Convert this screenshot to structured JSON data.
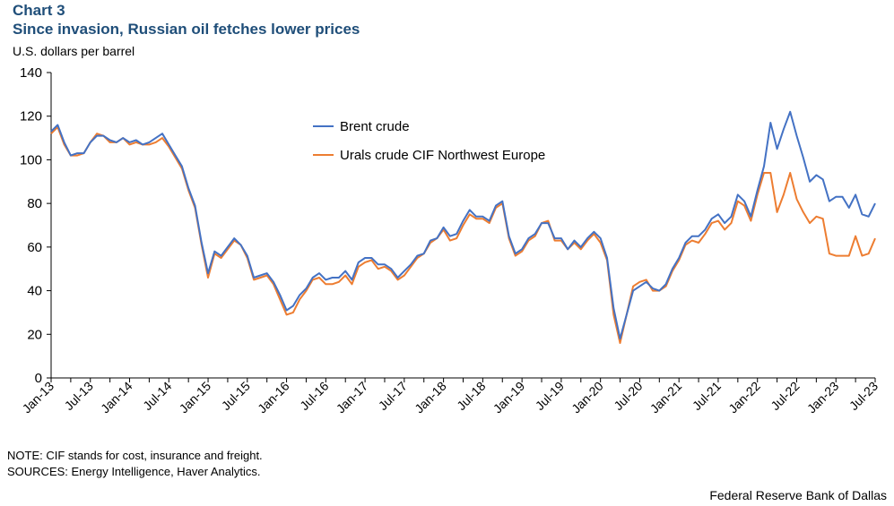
{
  "header": {
    "label": "Chart 3",
    "title": "Since invasion, Russian oil fetches lower prices",
    "unit": "U.S. dollars per barrel"
  },
  "footer": {
    "note": "NOTE: CIF stands for cost, insurance and freight.",
    "sources": "SOURCES: Energy Intelligence,  Haver Analytics.",
    "credit": "Federal Reserve Bank of Dallas"
  },
  "colors": {
    "brent": "#4472c4",
    "urals": "#ed7d31",
    "axis": "#000000"
  },
  "chart_data": {
    "type": "line",
    "title": "Since invasion, Russian oil fetches lower prices",
    "ylabel": "U.S. dollars per barrel",
    "ylim": [
      0,
      140
    ],
    "yticks": [
      0,
      20,
      40,
      60,
      80,
      100,
      120,
      140
    ],
    "grid": false,
    "legend_position": "upper-center",
    "x_start": "Jan-13",
    "x_end": "Jul-23",
    "xtick_labels": [
      "Jan-13",
      "Jul-13",
      "Jan-14",
      "Jul-14",
      "Jan-15",
      "Jul-15",
      "Jan-16",
      "Jul-16",
      "Jan-17",
      "Jul-17",
      "Jan-18",
      "Jul-18",
      "Jan-19",
      "Jul-19",
      "Jan-20",
      "Jul-20",
      "Jan-21",
      "Jul-21",
      "Jan-22",
      "Jul-22",
      "Jan-23",
      "Jul-23"
    ],
    "series": [
      {
        "name": "Brent crude",
        "color": "#4472c4",
        "values": [
          113,
          116,
          108,
          102,
          103,
          103,
          108,
          111,
          111,
          109,
          108,
          110,
          108,
          109,
          107,
          108,
          110,
          112,
          107,
          102,
          97,
          87,
          79,
          62,
          48,
          58,
          56,
          60,
          64,
          61,
          56,
          46,
          47,
          48,
          44,
          38,
          31,
          33,
          38,
          41,
          46,
          48,
          45,
          46,
          46,
          49,
          45,
          53,
          55,
          55,
          52,
          52,
          50,
          46,
          49,
          52,
          56,
          57,
          63,
          64,
          69,
          65,
          66,
          72,
          77,
          74,
          74,
          72,
          79,
          81,
          65,
          57,
          59,
          64,
          66,
          71,
          71,
          64,
          64,
          59,
          63,
          60,
          64,
          67,
          64,
          55,
          32,
          18,
          29,
          40,
          42,
          44,
          41,
          40,
          43,
          50,
          55,
          62,
          65,
          65,
          68,
          73,
          75,
          71,
          74,
          84,
          81,
          74,
          86,
          97,
          117,
          105,
          114,
          122,
          111,
          101,
          90,
          93,
          91,
          81,
          83,
          83,
          78,
          84,
          75,
          74,
          80
        ]
      },
      {
        "name": "Urals crude CIF Northwest Europe",
        "color": "#ed7d31",
        "values": [
          112,
          115,
          107,
          102,
          102,
          103,
          108,
          112,
          111,
          108,
          108,
          110,
          107,
          108,
          107,
          107,
          108,
          110,
          106,
          101,
          96,
          86,
          78,
          61,
          46,
          57,
          55,
          59,
          63,
          61,
          55,
          45,
          46,
          47,
          43,
          36,
          29,
          30,
          36,
          40,
          45,
          46,
          43,
          43,
          44,
          47,
          43,
          51,
          53,
          54,
          50,
          51,
          49,
          45,
          47,
          51,
          55,
          57,
          62,
          64,
          68,
          63,
          64,
          70,
          75,
          73,
          73,
          71,
          78,
          80,
          64,
          56,
          58,
          63,
          65,
          71,
          72,
          63,
          63,
          59,
          62,
          59,
          63,
          66,
          62,
          54,
          29,
          16,
          29,
          42,
          44,
          45,
          40,
          40,
          42,
          49,
          54,
          61,
          63,
          62,
          66,
          71,
          72,
          68,
          71,
          81,
          79,
          72,
          84,
          94,
          94,
          76,
          84,
          94,
          82,
          76,
          71,
          74,
          73,
          57,
          56,
          56,
          56,
          65,
          56,
          57,
          64
        ]
      }
    ]
  }
}
